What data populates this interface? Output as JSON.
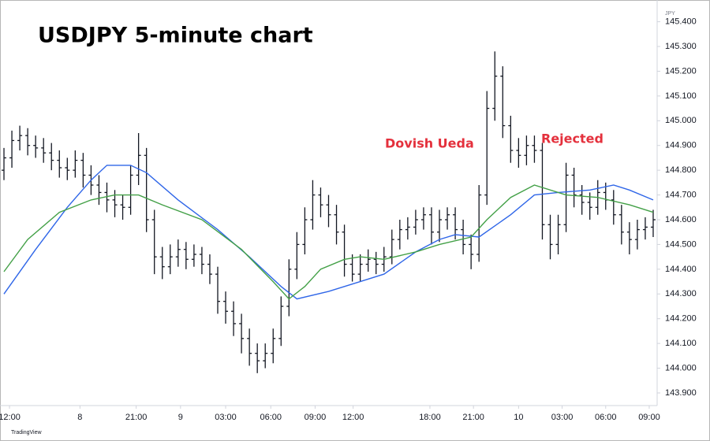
{
  "chart_data": {
    "type": "ohlc",
    "title": "USDJPY 5-minute chart",
    "y_axis_label": "JPY",
    "source": "TradingView",
    "bar_color": "#131722",
    "xlim": [
      -0.5,
      82.5
    ],
    "ylim": [
      143.849,
      145.456
    ],
    "yticks": [
      {
        "value": 143.9,
        "label": "143.900"
      },
      {
        "value": 144.0,
        "label": "144.000"
      },
      {
        "value": 144.1,
        "label": "144.100"
      },
      {
        "value": 144.2,
        "label": "144.200"
      },
      {
        "value": 144.3,
        "label": "144.300"
      },
      {
        "value": 144.4,
        "label": "144.400"
      },
      {
        "value": 144.5,
        "label": "144.500"
      },
      {
        "value": 144.6,
        "label": "144.600"
      },
      {
        "value": 144.7,
        "label": "144.700"
      },
      {
        "value": 144.8,
        "label": "144.800"
      },
      {
        "value": 144.9,
        "label": "144.900"
      },
      {
        "value": 145.0,
        "label": "145.000"
      },
      {
        "value": 145.1,
        "label": "145.100"
      },
      {
        "value": 145.2,
        "label": "145.200"
      },
      {
        "value": 145.3,
        "label": "145.300"
      },
      {
        "value": 145.4,
        "label": "145.400"
      }
    ],
    "xticks": [
      {
        "value": 0.7,
        "label": "12:00"
      },
      {
        "value": 9.6,
        "label": "8"
      },
      {
        "value": 16.7,
        "label": "21:00"
      },
      {
        "value": 22.3,
        "label": "9"
      },
      {
        "value": 28,
        "label": "03:00"
      },
      {
        "value": 33.7,
        "label": "06:00"
      },
      {
        "value": 39.3,
        "label": "09:00"
      },
      {
        "value": 44.1,
        "label": "12:00"
      },
      {
        "value": 53.8,
        "label": "18:00"
      },
      {
        "value": 59.3,
        "label": "21:00"
      },
      {
        "value": 65,
        "label": "10"
      },
      {
        "value": 70.5,
        "label": "03:00"
      },
      {
        "value": 76,
        "label": "06:00"
      },
      {
        "value": 81.5,
        "label": "09:00"
      }
    ],
    "open": [
      144.8,
      144.85,
      144.92,
      144.94,
      144.9,
      144.89,
      144.87,
      144.84,
      144.81,
      144.8,
      144.84,
      144.78,
      144.74,
      144.71,
      144.68,
      144.66,
      144.65,
      144.78,
      144.86,
      144.6,
      144.45,
      144.41,
      144.45,
      144.48,
      144.44,
      144.46,
      144.42,
      144.38,
      144.27,
      144.23,
      144.18,
      144.12,
      144.06,
      144.03,
      144.06,
      144.12,
      144.25,
      144.4,
      144.5,
      144.6,
      144.7,
      144.66,
      144.62,
      144.55,
      144.42,
      144.38,
      144.42,
      144.44,
      144.42,
      144.45,
      144.52,
      144.56,
      144.57,
      144.6,
      144.62,
      144.55,
      144.6,
      144.62,
      144.56,
      144.5,
      144.46,
      144.7,
      145.05,
      145.18,
      144.98,
      144.88,
      144.86,
      144.9,
      144.88,
      144.58,
      144.5,
      144.58,
      144.78,
      144.7,
      144.67,
      144.65,
      144.71,
      144.68,
      144.62,
      144.55,
      144.52,
      144.56,
      144.57
    ],
    "high": [
      144.89,
      144.96,
      144.98,
      144.97,
      144.94,
      144.93,
      144.91,
      144.88,
      144.85,
      144.88,
      144.87,
      144.82,
      144.78,
      144.75,
      144.72,
      144.7,
      144.82,
      144.95,
      144.89,
      144.64,
      144.49,
      144.5,
      144.52,
      144.51,
      144.5,
      144.49,
      144.46,
      144.41,
      144.31,
      144.27,
      144.22,
      144.16,
      144.1,
      144.1,
      144.16,
      144.29,
      144.44,
      144.55,
      144.65,
      144.76,
      144.73,
      144.7,
      144.66,
      144.58,
      144.46,
      144.46,
      144.48,
      144.47,
      144.49,
      144.56,
      144.6,
      144.61,
      144.64,
      144.65,
      144.65,
      144.64,
      144.65,
      144.65,
      144.6,
      144.54,
      144.74,
      145.12,
      145.28,
      145.22,
      145.02,
      144.93,
      144.94,
      144.94,
      144.91,
      144.62,
      144.62,
      144.83,
      144.81,
      144.74,
      144.71,
      144.76,
      144.75,
      144.72,
      144.66,
      144.59,
      144.6,
      144.61,
      144.64
    ],
    "low": [
      144.76,
      144.81,
      144.88,
      144.86,
      144.85,
      144.83,
      144.8,
      144.77,
      144.76,
      144.77,
      144.73,
      144.7,
      144.66,
      144.63,
      144.61,
      144.6,
      144.62,
      144.74,
      144.55,
      144.38,
      144.36,
      144.38,
      144.41,
      144.4,
      144.41,
      144.38,
      144.34,
      144.22,
      144.18,
      144.13,
      144.06,
      144.01,
      143.98,
      144.0,
      144.02,
      144.09,
      144.21,
      144.36,
      144.46,
      144.56,
      144.61,
      144.57,
      144.5,
      144.37,
      144.35,
      144.35,
      144.39,
      144.38,
      144.39,
      144.42,
      144.48,
      144.52,
      144.54,
      144.56,
      144.5,
      144.51,
      144.56,
      144.52,
      144.46,
      144.4,
      144.43,
      144.66,
      145.0,
      144.93,
      144.83,
      144.81,
      144.82,
      144.83,
      144.52,
      144.44,
      144.46,
      144.55,
      144.65,
      144.62,
      144.6,
      144.62,
      144.64,
      144.58,
      144.5,
      144.46,
      144.48,
      144.52,
      144.53
    ],
    "close": [
      144.85,
      144.92,
      144.94,
      144.9,
      144.89,
      144.87,
      144.84,
      144.81,
      144.8,
      144.84,
      144.78,
      144.74,
      144.71,
      144.68,
      144.66,
      144.65,
      144.78,
      144.86,
      144.6,
      144.45,
      144.41,
      144.45,
      144.48,
      144.44,
      144.46,
      144.42,
      144.38,
      144.27,
      144.23,
      144.18,
      144.12,
      144.06,
      144.03,
      144.06,
      144.12,
      144.25,
      144.4,
      144.5,
      144.6,
      144.7,
      144.66,
      144.62,
      144.55,
      144.42,
      144.38,
      144.42,
      144.44,
      144.42,
      144.45,
      144.52,
      144.56,
      144.57,
      144.6,
      144.62,
      144.55,
      144.6,
      144.62,
      144.56,
      144.5,
      144.46,
      144.7,
      145.05,
      145.18,
      144.98,
      144.88,
      144.86,
      144.9,
      144.88,
      144.58,
      144.5,
      144.58,
      144.78,
      144.7,
      144.67,
      144.65,
      144.71,
      144.68,
      144.62,
      144.55,
      144.52,
      144.56,
      144.57,
      144.6
    ],
    "overlays": [
      {
        "color": "#2f66e8",
        "x": [
          0,
          4,
          8,
          11,
          13,
          16,
          18,
          22,
          27,
          31,
          35,
          37,
          41,
          45,
          48,
          52,
          55,
          57,
          60,
          64,
          67,
          70,
          74,
          77,
          79,
          82
        ],
        "values": [
          144.3,
          144.48,
          144.65,
          144.76,
          144.82,
          144.82,
          144.79,
          144.68,
          144.56,
          144.45,
          144.33,
          144.28,
          144.31,
          144.35,
          144.38,
          144.47,
          144.52,
          144.54,
          144.53,
          144.62,
          144.7,
          144.71,
          144.72,
          144.74,
          144.72,
          144.68
        ]
      },
      {
        "color": "#43a047",
        "x": [
          0,
          3,
          7,
          11,
          14,
          17,
          20,
          25,
          30,
          34,
          36,
          38,
          40,
          43,
          45,
          48,
          52,
          55,
          59,
          61,
          64,
          67,
          71,
          75,
          79,
          82
        ],
        "values": [
          144.39,
          144.52,
          144.63,
          144.68,
          144.7,
          144.7,
          144.66,
          144.6,
          144.48,
          144.35,
          144.28,
          144.33,
          144.4,
          144.44,
          144.45,
          144.44,
          144.47,
          144.5,
          144.53,
          144.6,
          144.69,
          144.74,
          144.7,
          144.69,
          144.66,
          144.63
        ]
      }
    ],
    "annotations": [
      {
        "text": "Dovish Ueda",
        "color": "#e4303c"
      },
      {
        "text": "Rejected",
        "color": "#e4303c"
      }
    ]
  }
}
